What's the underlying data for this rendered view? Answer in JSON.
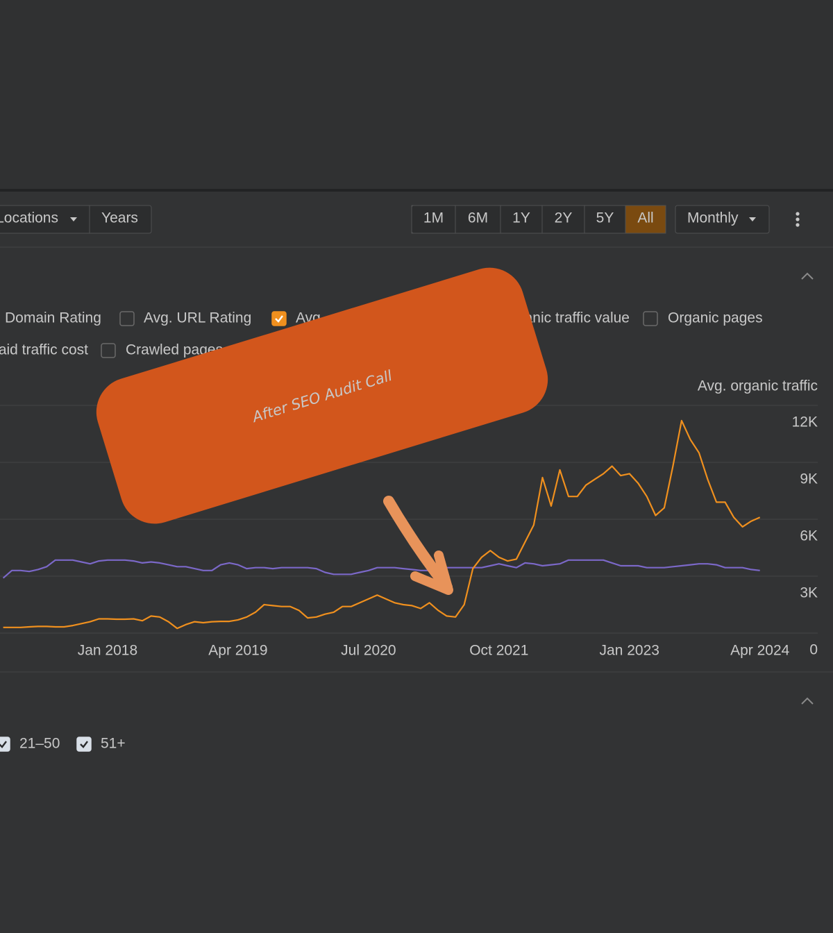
{
  "toolbar": {
    "locations": "Locations",
    "years": "Years",
    "ranges": [
      "1M",
      "6M",
      "1Y",
      "2Y",
      "5Y",
      "All"
    ],
    "active_range": 5,
    "interval": "Monthly"
  },
  "metrics": [
    [
      {
        "label": "Domain Rating"
      },
      {
        "label": "Avg. URL Rating",
        "checked": false
      },
      {
        "label": "Avg. organic traffic",
        "checked": true
      },
      {
        "label": "Organic traffic value"
      },
      {
        "label": "Organic pages",
        "checked": false
      }
    ],
    [
      {
        "label": "Paid traffic cost"
      },
      {
        "label": "Crawled pages",
        "checked": false
      }
    ]
  ],
  "positions": [
    {
      "label": "21–50",
      "checked": true
    },
    {
      "label": "51+",
      "checked": true
    }
  ],
  "annotation": "After SEO Audit Call",
  "chart_data": {
    "type": "line",
    "y_axis_title": "Avg. organic traffic",
    "categories": [
      null,
      null,
      null,
      null,
      null,
      null,
      null,
      null,
      null,
      null,
      null,
      null,
      "Jan 2018",
      null,
      null,
      null,
      null,
      null,
      null,
      null,
      null,
      null,
      null,
      null,
      null,
      null,
      null,
      "Apr 2019",
      null,
      null,
      null,
      null,
      null,
      null,
      null,
      null,
      null,
      null,
      null,
      null,
      null,
      null,
      "Jul 2020",
      null,
      null,
      null,
      null,
      null,
      null,
      null,
      null,
      null,
      null,
      null,
      null,
      null,
      null,
      "Oct 2021",
      null,
      null,
      null,
      null,
      null,
      null,
      null,
      null,
      null,
      null,
      null,
      null,
      null,
      null,
      "Jan 2023",
      null,
      null,
      null,
      null,
      null,
      null,
      null,
      null,
      null,
      null,
      null,
      null,
      null,
      null,
      "Apr 2024"
    ],
    "series": [
      {
        "color": "#f0901e",
        "values": [
          300,
          300,
          300,
          330,
          350,
          350,
          330,
          330,
          400,
          500,
          600,
          750,
          750,
          730,
          730,
          750,
          650,
          900,
          850,
          600,
          250,
          450,
          600,
          550,
          600,
          620,
          620,
          700,
          850,
          1100,
          1500,
          1450,
          1400,
          1400,
          1200,
          800,
          850,
          1000,
          1100,
          1400,
          1400,
          1600,
          1800,
          2000,
          1800,
          1600,
          1500,
          1450,
          1300,
          1600,
          1200,
          900,
          850,
          1500,
          3400,
          4000,
          4350,
          4000,
          3800,
          3900,
          4800,
          5700,
          8200,
          6700,
          8600,
          7200,
          7200,
          7800,
          8100,
          8400,
          8800,
          8300,
          8400,
          7900,
          7200,
          6200,
          6600,
          8800,
          11200,
          10200,
          9500,
          8100,
          6900,
          6900,
          6100,
          5600,
          5900,
          6100
        ]
      },
      {
        "color": "#7b68c8",
        "values": [
          2900,
          3300,
          3300,
          3250,
          3350,
          3500,
          3850,
          3850,
          3850,
          3750,
          3650,
          3800,
          3850,
          3850,
          3850,
          3800,
          3700,
          3750,
          3700,
          3600,
          3500,
          3500,
          3400,
          3300,
          3300,
          3600,
          3700,
          3600,
          3400,
          3450,
          3450,
          3400,
          3450,
          3450,
          3450,
          3450,
          3400,
          3200,
          3100,
          3100,
          3100,
          3200,
          3300,
          3450,
          3450,
          3450,
          3400,
          3350,
          3300,
          3300,
          3400,
          3450,
          3450,
          3450,
          3450,
          3450,
          3550,
          3650,
          3550,
          3450,
          3700,
          3650,
          3550,
          3600,
          3650,
          3850,
          3850,
          3850,
          3850,
          3850,
          3700,
          3550,
          3550,
          3550,
          3450,
          3450,
          3450,
          3500,
          3550,
          3600,
          3650,
          3650,
          3600,
          3450,
          3450,
          3450,
          3350,
          3300
        ]
      }
    ],
    "ylim": [
      0,
      12000
    ],
    "yticks": [
      0,
      {
        "value": 3000,
        "label": "3K"
      },
      {
        "value": 6000,
        "label": "6K"
      },
      {
        "value": 9000,
        "label": "9K"
      },
      {
        "value": 12000,
        "label": "12K"
      }
    ],
    "grid": true
  }
}
